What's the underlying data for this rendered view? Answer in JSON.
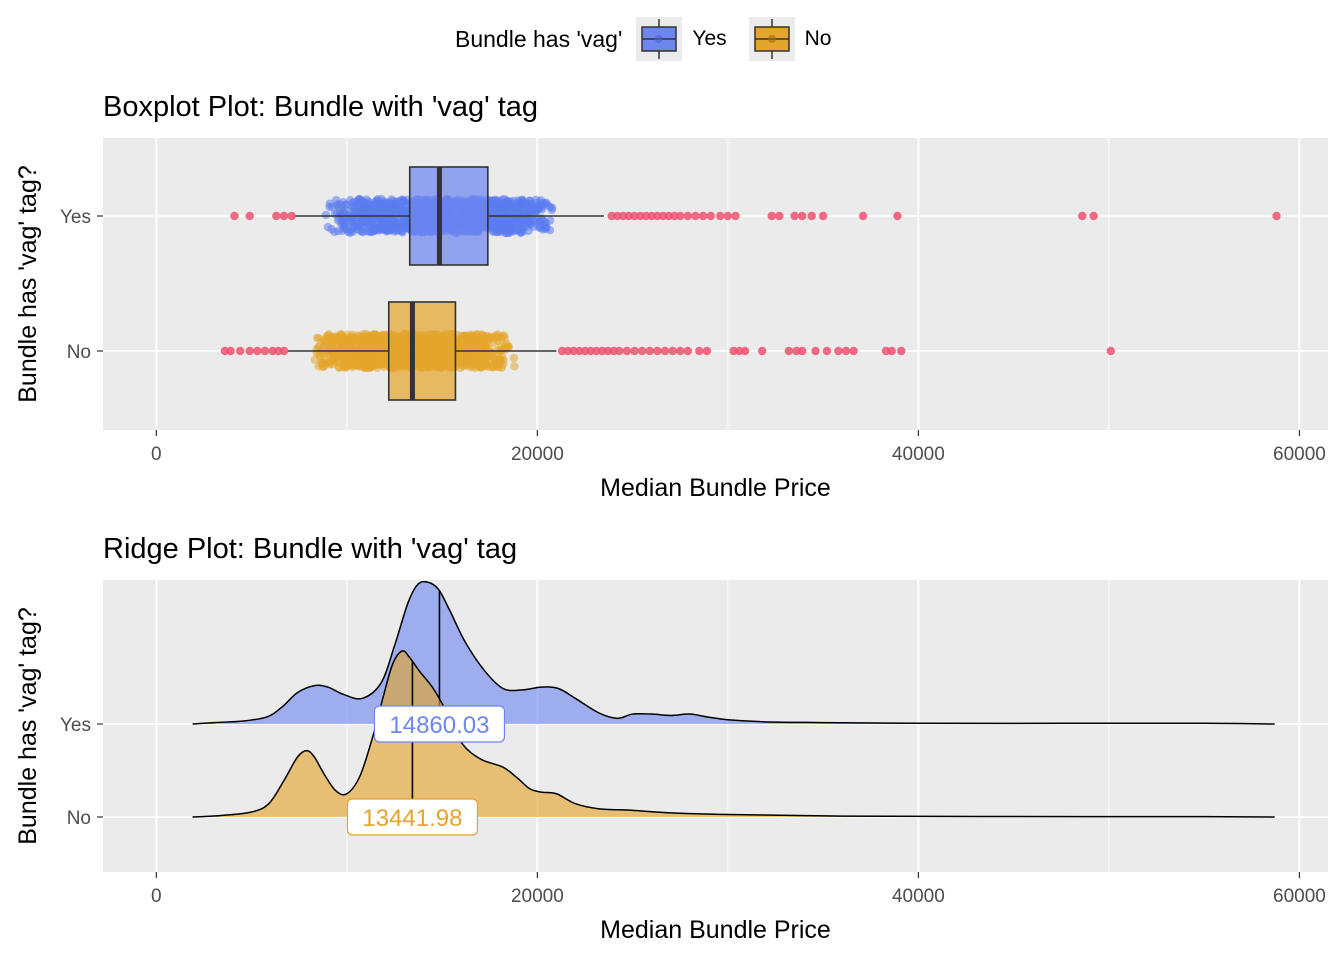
{
  "legend": {
    "title": "Bundle has 'vag'",
    "items": [
      {
        "label": "Yes",
        "color": "#6e87f0"
      },
      {
        "label": "No",
        "color": "#e3a52c"
      }
    ]
  },
  "chart_data": [
    {
      "type": "boxplot",
      "title": "Boxplot Plot: Bundle with 'vag' tag",
      "xlabel": "Median Bundle Price",
      "ylabel": "Bundle has 'vag' tag?",
      "xlim": [
        -2800,
        61500
      ],
      "x_ticks": [
        0,
        20000,
        40000,
        60000
      ],
      "categories": [
        "Yes",
        "No"
      ],
      "grid": true,
      "series": [
        {
          "name": "Yes",
          "fill": "#6e87f0",
          "point_color": "#5b7cf0",
          "whisker_low": 7200,
          "q1": 13300,
          "median": 14860,
          "q3": 17400,
          "whisker_high": 23500,
          "jitter_range": [
            8700,
            21100
          ],
          "outliers": [
            4100,
            4900,
            6300,
            6700,
            7100,
            23900,
            24200,
            24500,
            24800,
            25100,
            25400,
            25700,
            26000,
            26300,
            26600,
            26900,
            27200,
            27500,
            27900,
            28300,
            28700,
            29100,
            29600,
            30000,
            30400,
            32300,
            32700,
            33500,
            33900,
            34400,
            35000,
            37100,
            38900,
            48600,
            49200,
            58800
          ]
        },
        {
          "name": "No",
          "fill": "#e3a52c",
          "point_color": "#e3a52c",
          "whisker_low": 6900,
          "q1": 12200,
          "median": 13441.98,
          "q3": 15700,
          "whisker_high": 21000,
          "jitter_range": [
            8100,
            18900
          ],
          "outliers": [
            3600,
            3900,
            4400,
            4900,
            5300,
            5700,
            6100,
            6400,
            6700,
            21300,
            21600,
            21900,
            22200,
            22500,
            22800,
            23100,
            23400,
            23700,
            24000,
            24300,
            24700,
            25100,
            25500,
            25900,
            26300,
            26700,
            27100,
            27500,
            27900,
            28500,
            28900,
            30300,
            30600,
            30900,
            31800,
            33200,
            33600,
            33900,
            34600,
            35200,
            35800,
            36200,
            36600,
            38300,
            38600,
            39100,
            50100
          ]
        }
      ]
    },
    {
      "type": "ridgeline",
      "title": "Ridge Plot: Bundle with 'vag' tag",
      "xlabel": "Median Bundle Price",
      "ylabel": "Bundle has 'vag' tag?",
      "xlim": [
        -2800,
        61500
      ],
      "x_ticks": [
        0,
        20000,
        40000,
        60000
      ],
      "categories": [
        "Yes",
        "No"
      ],
      "grid": true,
      "series": [
        {
          "name": "Yes",
          "fill": "#6e87f0",
          "median": 14860.03,
          "median_label": "14860.03",
          "x": [
            1900,
            3000,
            4500,
            5800,
            6600,
            7400,
            8300,
            9000,
            9800,
            10800,
            11800,
            12500,
            13200,
            13700,
            14200,
            14800,
            15400,
            16200,
            17200,
            18200,
            19200,
            20200,
            21100,
            22000,
            23200,
            24200,
            25000,
            26000,
            27000,
            28000,
            28900,
            30000,
            32000,
            35000,
            40000,
            48000,
            55000,
            58700
          ],
          "density": [
            0.0,
            0.01,
            0.02,
            0.05,
            0.12,
            0.22,
            0.27,
            0.26,
            0.21,
            0.18,
            0.29,
            0.55,
            0.85,
            0.98,
            1.0,
            0.95,
            0.8,
            0.58,
            0.38,
            0.25,
            0.24,
            0.26,
            0.25,
            0.18,
            0.08,
            0.04,
            0.07,
            0.07,
            0.06,
            0.07,
            0.05,
            0.03,
            0.015,
            0.01,
            0.005,
            0.005,
            0.005,
            0.0
          ]
        },
        {
          "name": "No",
          "fill": "#e3a52c",
          "median": 13441.98,
          "median_label": "13441.98",
          "x": [
            1900,
            3500,
            5000,
            5900,
            6700,
            7400,
            7900,
            8300,
            8800,
            9400,
            10000,
            10700,
            11400,
            11900,
            12400,
            12900,
            13300,
            13800,
            14500,
            15200,
            16000,
            17000,
            18200,
            19000,
            19600,
            20200,
            21000,
            22000,
            23200,
            25000,
            27000,
            30000,
            36000,
            45000,
            55000,
            58700
          ],
          "density": [
            0.0,
            0.01,
            0.03,
            0.08,
            0.22,
            0.36,
            0.4,
            0.36,
            0.26,
            0.16,
            0.14,
            0.25,
            0.5,
            0.72,
            0.92,
            1.0,
            0.96,
            0.88,
            0.78,
            0.64,
            0.45,
            0.35,
            0.3,
            0.23,
            0.17,
            0.15,
            0.14,
            0.08,
            0.05,
            0.04,
            0.025,
            0.015,
            0.005,
            0.003,
            0.002,
            0.0
          ]
        }
      ]
    }
  ]
}
